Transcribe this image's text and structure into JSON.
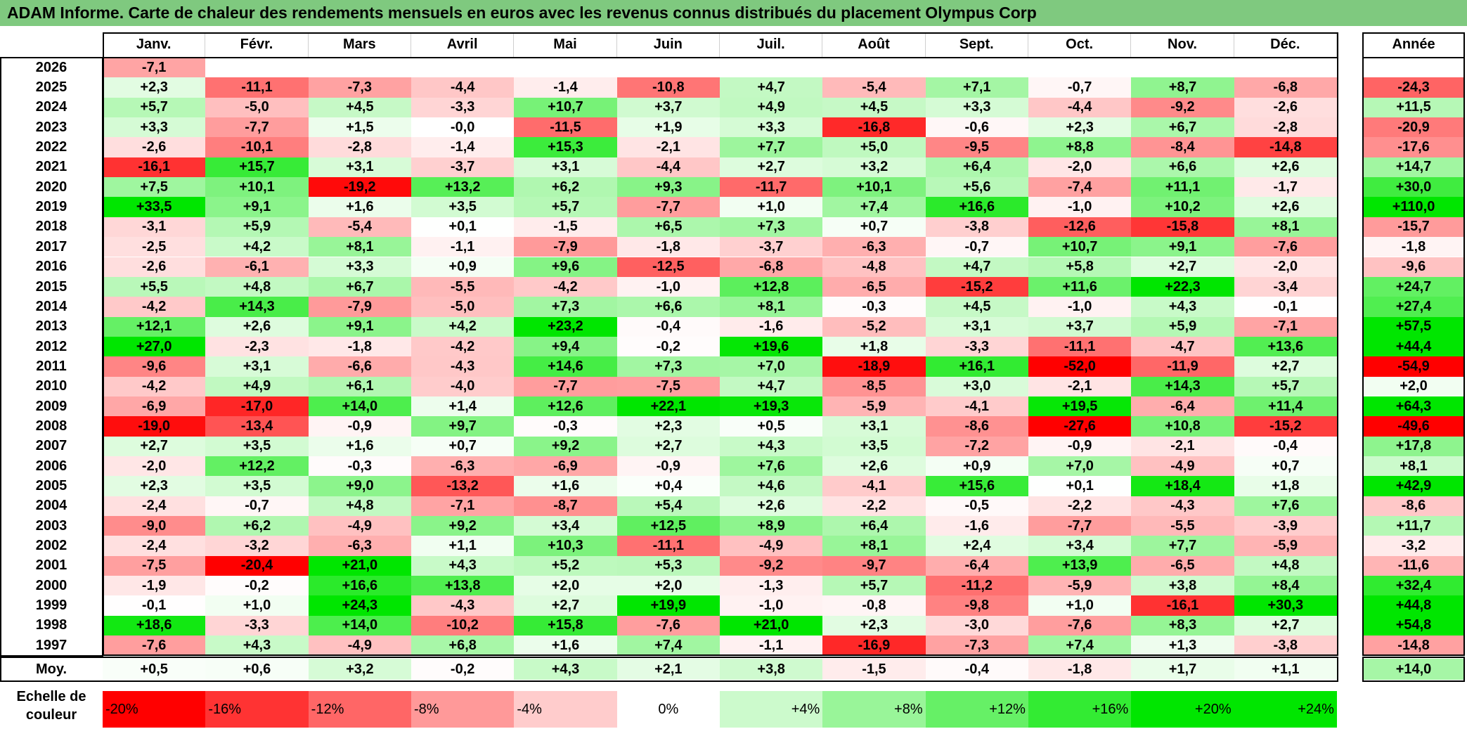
{
  "title": "ADAM Informe. Carte de chaleur des rendements mensuels en euros avec les revenus connus distribués du placement Olympus Corp",
  "chart_data": {
    "type": "heatmap",
    "title": "ADAM Informe. Carte de chaleur des rendements mensuels en euros avec les revenus connus distribués du placement Olympus Corp",
    "months": [
      "Janv.",
      "Févr.",
      "Mars",
      "Avril",
      "Mai",
      "Juin",
      "Juil.",
      "Août",
      "Sept.",
      "Oct.",
      "Nov.",
      "Déc."
    ],
    "year_header": "Année",
    "rows": [
      {
        "year": "2026",
        "values": [
          "-7,1",
          "",
          "",
          "",
          "",
          "",
          "",
          "",
          "",
          "",
          "",
          ""
        ],
        "annual": ""
      },
      {
        "year": "2025",
        "values": [
          "+2,3",
          "-11,1",
          "-7,3",
          "-4,4",
          "-1,4",
          "-10,8",
          "+4,7",
          "-5,4",
          "+7,1",
          "-0,7",
          "+8,7",
          "-6,8"
        ],
        "annual": "-24,3"
      },
      {
        "year": "2024",
        "values": [
          "+5,7",
          "-5,0",
          "+4,5",
          "-3,3",
          "+10,7",
          "+3,7",
          "+4,9",
          "+4,5",
          "+3,3",
          "-4,4",
          "-9,2",
          "-2,6"
        ],
        "annual": "+11,5"
      },
      {
        "year": "2023",
        "values": [
          "+3,3",
          "-7,7",
          "+1,5",
          "-0,0",
          "-11,5",
          "+1,9",
          "+3,3",
          "-16,8",
          "-0,6",
          "+2,3",
          "+6,7",
          "-2,8"
        ],
        "annual": "-20,9"
      },
      {
        "year": "2022",
        "values": [
          "-2,6",
          "-10,1",
          "-2,8",
          "-1,4",
          "+15,3",
          "-2,1",
          "+7,7",
          "+5,0",
          "-9,5",
          "+8,8",
          "-8,4",
          "-14,8"
        ],
        "annual": "-17,6"
      },
      {
        "year": "2021",
        "values": [
          "-16,1",
          "+15,7",
          "+3,1",
          "-3,7",
          "+3,1",
          "-4,4",
          "+2,7",
          "+3,2",
          "+6,4",
          "-2,0",
          "+6,6",
          "+2,6"
        ],
        "annual": "+14,7"
      },
      {
        "year": "2020",
        "values": [
          "+7,5",
          "+10,1",
          "-19,2",
          "+13,2",
          "+6,2",
          "+9,3",
          "-11,7",
          "+10,1",
          "+5,6",
          "-7,4",
          "+11,1",
          "-1,7"
        ],
        "annual": "+30,0"
      },
      {
        "year": "2019",
        "values": [
          "+33,5",
          "+9,1",
          "+1,6",
          "+3,5",
          "+5,7",
          "-7,7",
          "+1,0",
          "+7,4",
          "+16,6",
          "-1,0",
          "+10,2",
          "+2,6"
        ],
        "annual": "+110,0"
      },
      {
        "year": "2018",
        "values": [
          "-3,1",
          "+5,9",
          "-5,4",
          "+0,1",
          "-1,5",
          "+6,5",
          "+7,3",
          "+0,7",
          "-3,8",
          "-12,6",
          "-15,8",
          "+8,1"
        ],
        "annual": "-15,7"
      },
      {
        "year": "2017",
        "values": [
          "-2,5",
          "+4,2",
          "+8,1",
          "-1,1",
          "-7,9",
          "-1,8",
          "-3,7",
          "-6,3",
          "-0,7",
          "+10,7",
          "+9,1",
          "-7,6"
        ],
        "annual": "-1,8"
      },
      {
        "year": "2016",
        "values": [
          "-2,6",
          "-6,1",
          "+3,3",
          "+0,9",
          "+9,6",
          "-12,5",
          "-6,8",
          "-4,8",
          "+4,7",
          "+5,8",
          "+2,7",
          "-2,0"
        ],
        "annual": "-9,6"
      },
      {
        "year": "2015",
        "values": [
          "+5,5",
          "+4,8",
          "+6,7",
          "-5,5",
          "-4,2",
          "-1,0",
          "+12,8",
          "-6,5",
          "-15,2",
          "+11,6",
          "+22,3",
          "-3,4"
        ],
        "annual": "+24,7"
      },
      {
        "year": "2014",
        "values": [
          "-4,2",
          "+14,3",
          "-7,9",
          "-5,0",
          "+7,3",
          "+6,6",
          "+8,1",
          "-0,3",
          "+4,5",
          "-1,0",
          "+4,3",
          "-0,1"
        ],
        "annual": "+27,4"
      },
      {
        "year": "2013",
        "values": [
          "+12,1",
          "+2,6",
          "+9,1",
          "+4,2",
          "+23,2",
          "-0,4",
          "-1,6",
          "-5,2",
          "+3,1",
          "+3,7",
          "+5,9",
          "-7,1"
        ],
        "annual": "+57,5"
      },
      {
        "year": "2012",
        "values": [
          "+27,0",
          "-2,3",
          "-1,8",
          "-4,2",
          "+9,4",
          "-0,2",
          "+19,6",
          "+1,8",
          "-3,3",
          "-11,1",
          "-4,7",
          "+13,6"
        ],
        "annual": "+44,4"
      },
      {
        "year": "2011",
        "values": [
          "-9,6",
          "+3,1",
          "-6,6",
          "-4,3",
          "+14,6",
          "+7,3",
          "+7,0",
          "-18,9",
          "+16,1",
          "-52,0",
          "-11,9",
          "+2,7"
        ],
        "annual": "-54,9"
      },
      {
        "year": "2010",
        "values": [
          "-4,2",
          "+4,9",
          "+6,1",
          "-4,0",
          "-7,7",
          "-7,5",
          "+4,7",
          "-8,5",
          "+3,0",
          "-2,1",
          "+14,3",
          "+5,7"
        ],
        "annual": "+2,0"
      },
      {
        "year": "2009",
        "values": [
          "-6,9",
          "-17,0",
          "+14,0",
          "+1,4",
          "+12,6",
          "+22,1",
          "+19,3",
          "-5,9",
          "-4,1",
          "+19,5",
          "-6,4",
          "+11,4"
        ],
        "annual": "+64,3"
      },
      {
        "year": "2008",
        "values": [
          "-19,0",
          "-13,4",
          "-0,9",
          "+9,7",
          "-0,3",
          "+2,3",
          "+0,5",
          "+3,1",
          "-8,6",
          "-27,6",
          "+10,8",
          "-15,2"
        ],
        "annual": "-49,6"
      },
      {
        "year": "2007",
        "values": [
          "+2,7",
          "+3,5",
          "+1,6",
          "+0,7",
          "+9,2",
          "+2,7",
          "+4,3",
          "+3,5",
          "-7,2",
          "-0,9",
          "-2,1",
          "-0,4"
        ],
        "annual": "+17,8"
      },
      {
        "year": "2006",
        "values": [
          "-2,0",
          "+12,2",
          "-0,3",
          "-6,3",
          "-6,9",
          "-0,9",
          "+7,6",
          "+2,6",
          "+0,9",
          "+7,0",
          "-4,9",
          "+0,7"
        ],
        "annual": "+8,1"
      },
      {
        "year": "2005",
        "values": [
          "+2,3",
          "+3,5",
          "+9,0",
          "-13,2",
          "+1,6",
          "+0,4",
          "+4,6",
          "-4,1",
          "+15,6",
          "+0,1",
          "+18,4",
          "+1,8"
        ],
        "annual": "+42,9"
      },
      {
        "year": "2004",
        "values": [
          "-2,4",
          "-0,7",
          "+4,8",
          "-7,1",
          "-8,7",
          "+5,4",
          "+2,6",
          "-2,2",
          "-0,5",
          "-2,2",
          "-4,3",
          "+7,6"
        ],
        "annual": "-8,6"
      },
      {
        "year": "2003",
        "values": [
          "-9,0",
          "+6,2",
          "-4,9",
          "+9,2",
          "+3,4",
          "+12,5",
          "+8,9",
          "+6,4",
          "-1,6",
          "-7,7",
          "-5,5",
          "-3,9"
        ],
        "annual": "+11,7"
      },
      {
        "year": "2002",
        "values": [
          "-2,4",
          "-3,2",
          "-6,3",
          "+1,1",
          "+10,3",
          "-11,1",
          "-4,9",
          "+8,1",
          "+2,4",
          "+3,4",
          "+7,7",
          "-5,9"
        ],
        "annual": "-3,2"
      },
      {
        "year": "2001",
        "values": [
          "-7,5",
          "-20,4",
          "+21,0",
          "+4,3",
          "+5,2",
          "+5,3",
          "-9,2",
          "-9,7",
          "-6,4",
          "+13,9",
          "-6,5",
          "+4,8"
        ],
        "annual": "-11,6"
      },
      {
        "year": "2000",
        "values": [
          "-1,9",
          "-0,2",
          "+16,6",
          "+13,8",
          "+2,0",
          "+2,0",
          "-1,3",
          "+5,7",
          "-11,2",
          "-5,9",
          "+3,8",
          "+8,4"
        ],
        "annual": "+32,4"
      },
      {
        "year": "1999",
        "values": [
          "-0,1",
          "+1,0",
          "+24,3",
          "-4,3",
          "+2,7",
          "+19,9",
          "-1,0",
          "-0,8",
          "-9,8",
          "+1,0",
          "-16,1",
          "+30,3"
        ],
        "annual": "+44,8"
      },
      {
        "year": "1998",
        "values": [
          "+18,6",
          "-3,3",
          "+14,0",
          "-10,2",
          "+15,8",
          "-7,6",
          "+21,0",
          "+2,3",
          "-3,0",
          "-7,6",
          "+8,3",
          "+2,7"
        ],
        "annual": "+54,8"
      },
      {
        "year": "1997",
        "values": [
          "-7,6",
          "+4,3",
          "-4,9",
          "+6,8",
          "+1,6",
          "+7,4",
          "-1,1",
          "-16,9",
          "-7,3",
          "+7,4",
          "+1,3",
          "-3,8"
        ],
        "annual": "-14,8"
      }
    ],
    "average": {
      "label": "Moy.",
      "values": [
        "+0,5",
        "+0,6",
        "+3,2",
        "-0,2",
        "+4,3",
        "+2,1",
        "+3,8",
        "-1,5",
        "-0,4",
        "-1,8",
        "+1,7",
        "+1,1"
      ],
      "annual": "+14,0"
    },
    "color_scale": {
      "label": "Echelle de couleur",
      "stops": [
        "-20%",
        "-16%",
        "-12%",
        "-8%",
        "-4%",
        "0%",
        "+4%",
        "+8%",
        "+12%",
        "+16%",
        "+20%",
        "+24%"
      ],
      "stop_values": [
        -20,
        -16,
        -12,
        -8,
        -4,
        0,
        4,
        8,
        12,
        16,
        20,
        24
      ],
      "negative_color": "#ff0000",
      "positive_color": "#00e600",
      "neutral_color": "#ffffff"
    }
  }
}
